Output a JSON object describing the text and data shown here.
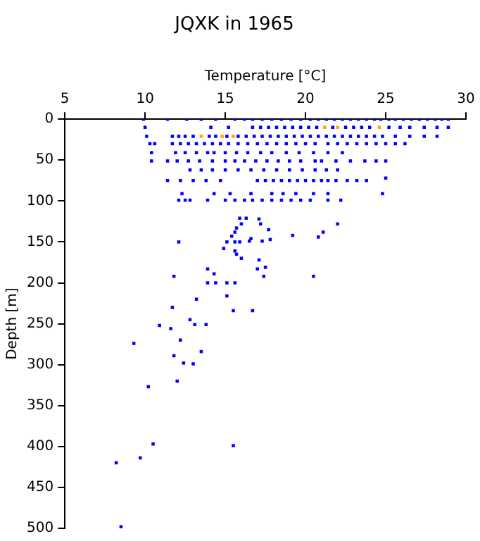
{
  "chart_data": {
    "type": "scatter",
    "title": "JQXK in 1965",
    "xlabel": "Temperature [°C]",
    "ylabel": "Depth [m]",
    "xlim": [
      5,
      30
    ],
    "xticks": [
      5,
      10,
      15,
      20,
      25,
      30
    ],
    "ylim": [
      500,
      0
    ],
    "yticks": [
      0,
      50,
      100,
      150,
      200,
      250,
      300,
      350,
      400,
      450,
      500
    ],
    "marker": "square",
    "series": [
      {
        "color": "#0000ff",
        "x": [
          9.9,
          11.4,
          12.6,
          13.5,
          14.4,
          15.6,
          16.2,
          16.7,
          17.3,
          17.9,
          18.5,
          19.1,
          19.7,
          20.3,
          20.8,
          21.3,
          21.8,
          22.3,
          22.8,
          23.3,
          23.8,
          24.3,
          24.7,
          25.2,
          25.6,
          26.1,
          26.6,
          27.1,
          27.6,
          28.1,
          28.5,
          28.9,
          10.0,
          14.1,
          15.2,
          16.7,
          17.2,
          17.7,
          18.2,
          18.7,
          19.2,
          19.7,
          20.2,
          20.7,
          21.7,
          22.5,
          23.0,
          23.5,
          24.0,
          25.2,
          25.9,
          26.5,
          27.4,
          28.2,
          28.9,
          10.1,
          11.7,
          12.1,
          12.5,
          13.0,
          14.0,
          14.4,
          15.1,
          15.8,
          16.3,
          16.8,
          17.3,
          17.8,
          18.3,
          18.8,
          19.3,
          19.8,
          20.3,
          20.8,
          21.3,
          21.8,
          22.3,
          22.8,
          23.3,
          23.8,
          24.3,
          24.8,
          25.6,
          26.5,
          27.4,
          28.2,
          10.3,
          10.6,
          11.7,
          12.2,
          12.7,
          13.2,
          13.7,
          14.2,
          14.7,
          15.2,
          15.8,
          16.4,
          17.0,
          17.6,
          18.2,
          18.8,
          19.4,
          20.0,
          20.6,
          21.4,
          22.0,
          22.6,
          23.2,
          23.8,
          24.4,
          25.0,
          25.6,
          26.2,
          10.4,
          11.9,
          12.5,
          13.2,
          13.9,
          14.3,
          15.0,
          15.7,
          16.4,
          17.2,
          17.9,
          18.8,
          19.6,
          20.5,
          21.4,
          22.3,
          10.4,
          11.4,
          12.0,
          12.7,
          13.4,
          14.2,
          15.0,
          15.6,
          16.2,
          16.9,
          17.6,
          18.3,
          19.0,
          19.7,
          20.6,
          21.0,
          21.9,
          22.8,
          23.7,
          24.4,
          25.0,
          12.8,
          13.5,
          14.2,
          15.0,
          15.8,
          16.6,
          17.4,
          18.2,
          19.0,
          19.8,
          20.6,
          21.3,
          22.0,
          11.4,
          12.2,
          13.0,
          13.8,
          14.7,
          17.0,
          17.5,
          18.0,
          18.5,
          19.0,
          19.5,
          20.0,
          20.5,
          21.0,
          21.4,
          21.9,
          22.6,
          23.2,
          23.8,
          25.0,
          12.3,
          14.3,
          15.3,
          16.6,
          17.9,
          18.6,
          19.4,
          20.5,
          21.4,
          24.8,
          12.1,
          12.5,
          12.8,
          13.9,
          15.0,
          15.6,
          16.2,
          16.7,
          17.3,
          17.9,
          18.5,
          19.1,
          19.7,
          20.3,
          21.4,
          22.2,
          15.9,
          16.3,
          17.1,
          16.0,
          17.2,
          15.7,
          17.7,
          22.0,
          15.6,
          21.1,
          12.1,
          15.4,
          15.1,
          15.6,
          15.9,
          16.5,
          16.6,
          17.3,
          17.8,
          19.2,
          20.8,
          14.9,
          15.6,
          15.7,
          16.0,
          17.1,
          17.5,
          17.0,
          13.9,
          14.3,
          17.4,
          20.5,
          11.8,
          13.9,
          14.4,
          15.1,
          15.6,
          15.1,
          13.2,
          11.7,
          15.5,
          16.7,
          12.8,
          10.9,
          13.1,
          13.8,
          11.6,
          12.2,
          9.3,
          11.8,
          13.5,
          12.4,
          13.0,
          10.2,
          12.0,
          10.5,
          15.5,
          9.7,
          8.2,
          8.5
        ],
        "values": [
          0,
          0,
          0,
          0,
          0,
          0,
          0,
          0,
          0,
          0,
          0,
          0,
          0,
          0,
          0,
          0,
          0,
          0,
          0,
          0,
          0,
          0,
          0,
          0,
          0,
          0,
          0,
          0,
          0,
          0,
          0,
          0,
          10,
          10,
          10,
          10,
          10,
          10,
          10,
          10,
          10,
          10,
          10,
          10,
          10,
          10,
          10,
          10,
          10,
          10,
          10,
          10,
          10,
          10,
          10,
          21,
          21,
          21,
          21,
          21,
          21,
          21,
          21,
          21,
          21,
          21,
          21,
          21,
          21,
          21,
          21,
          21,
          21,
          21,
          21,
          21,
          21,
          21,
          21,
          21,
          21,
          21,
          21,
          21,
          21,
          21,
          30,
          30,
          30,
          30,
          30,
          30,
          30,
          30,
          30,
          30,
          30,
          30,
          30,
          30,
          30,
          30,
          30,
          30,
          30,
          30,
          30,
          30,
          30,
          30,
          30,
          30,
          30,
          30,
          41,
          41,
          41,
          41,
          41,
          41,
          41,
          41,
          41,
          41,
          41,
          41,
          41,
          41,
          41,
          41,
          51,
          51,
          51,
          51,
          51,
          51,
          51,
          51,
          51,
          51,
          51,
          51,
          51,
          51,
          51,
          51,
          51,
          51,
          51,
          51,
          51,
          62,
          62,
          62,
          62,
          62,
          62,
          62,
          62,
          62,
          62,
          62,
          62,
          62,
          75,
          75,
          75,
          75,
          75,
          75,
          75,
          75,
          75,
          75,
          75,
          75,
          75,
          75,
          75,
          75,
          75,
          75,
          75,
          72,
          91,
          91,
          91,
          91,
          91,
          91,
          91,
          91,
          91,
          91,
          99,
          99,
          99,
          99,
          99,
          99,
          99,
          99,
          99,
          99,
          99,
          99,
          99,
          99,
          99,
          99,
          121,
          121,
          122,
          128,
          128,
          133,
          135,
          128,
          138,
          138,
          150,
          143,
          150,
          150,
          150,
          149,
          146,
          149,
          147,
          142,
          144,
          158,
          161,
          165,
          170,
          172,
          181,
          183,
          183,
          189,
          192,
          192,
          192,
          200,
          200,
          200,
          200,
          216,
          220,
          230,
          234,
          234,
          245,
          252,
          251,
          251,
          256,
          270,
          274,
          289,
          284,
          298,
          299,
          327,
          320,
          397,
          399,
          414,
          420,
          498
        ]
      },
      {
        "color": "#ffa500",
        "x": [
          21.2,
          22.0,
          24.6,
          13.5,
          14.8,
          15.5
        ],
        "values": [
          10,
          10,
          10,
          21,
          21,
          21
        ]
      }
    ]
  }
}
